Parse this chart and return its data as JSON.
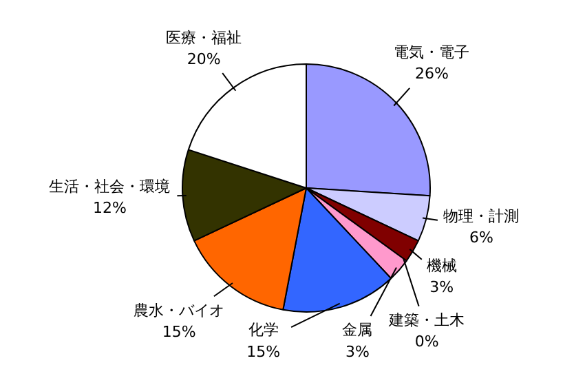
{
  "chart_data": {
    "type": "pie",
    "categories": [
      "電気・電子",
      "物理・計測",
      "機械",
      "建築・土木",
      "金属",
      "化学",
      "農水・バイオ",
      "生活・社会・環境",
      "医療・福祉"
    ],
    "values": [
      26,
      6,
      3,
      0,
      3,
      15,
      15,
      12,
      20
    ],
    "value_labels": [
      "26%",
      "6%",
      "3%",
      "0%",
      "3%",
      "15%",
      "15%",
      "12%",
      "20%"
    ],
    "colors": [
      "#9999ff",
      "#ccccff",
      "#800000",
      "#ffff99",
      "#ff99cc",
      "#3366ff",
      "#ff6600",
      "#333300",
      "#ffffff"
    ]
  }
}
